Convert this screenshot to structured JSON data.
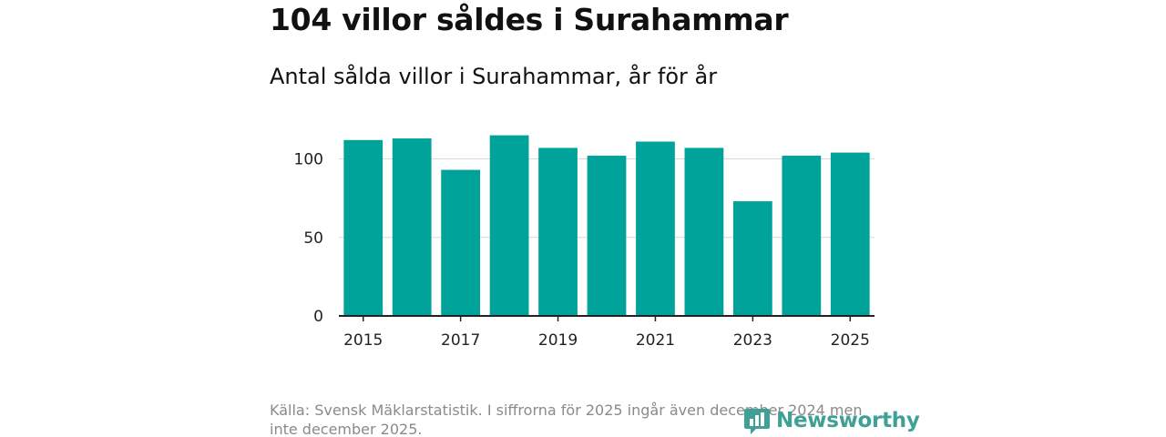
{
  "title": "104 villor såldes i Surahammar",
  "subtitle": "Antal sålda villor i Surahammar, år för år",
  "source": "Källa: Svensk Mäklarstatistik. I siffrorna för 2025 ingår även december 2024 men inte december 2025.",
  "logo": {
    "text": "Newsworthy",
    "icon": "chart-speech-bubble-icon",
    "color": "#3fa096"
  },
  "colors": {
    "bar": "#00a39a",
    "grid": "#d9d9d9",
    "axis": "#222222"
  },
  "chart_data": {
    "type": "bar",
    "title": "Antal sålda villor i Surahammar, år för år",
    "xlabel": "",
    "ylabel": "",
    "categories": [
      "2015",
      "2016",
      "2017",
      "2018",
      "2019",
      "2020",
      "2021",
      "2022",
      "2023",
      "2024",
      "2025"
    ],
    "values": [
      112,
      113,
      93,
      115,
      107,
      102,
      111,
      107,
      73,
      102,
      104
    ],
    "ylim": [
      0,
      120
    ],
    "yticks": [
      0,
      50,
      100
    ],
    "xtick_labels": [
      "2015",
      "2017",
      "2019",
      "2021",
      "2023",
      "2025"
    ],
    "grid": true,
    "legend": "none"
  }
}
